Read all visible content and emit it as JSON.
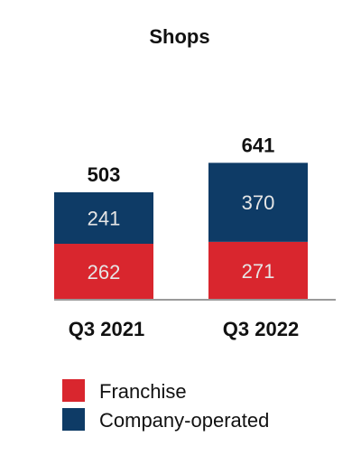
{
  "chart_data": {
    "type": "bar",
    "stacked": true,
    "title": "Shops",
    "categories": [
      "Q3 2021",
      "Q3 2022"
    ],
    "series": [
      {
        "name": "Franchise",
        "values": [
          262,
          271
        ],
        "color": "#d9262e"
      },
      {
        "name": "Company-operated",
        "values": [
          241,
          370
        ],
        "color": "#0e3b66"
      }
    ],
    "totals": [
      503,
      641
    ],
    "xlabel": "",
    "ylabel": "",
    "grid": false,
    "legend_position": "bottom-left"
  }
}
